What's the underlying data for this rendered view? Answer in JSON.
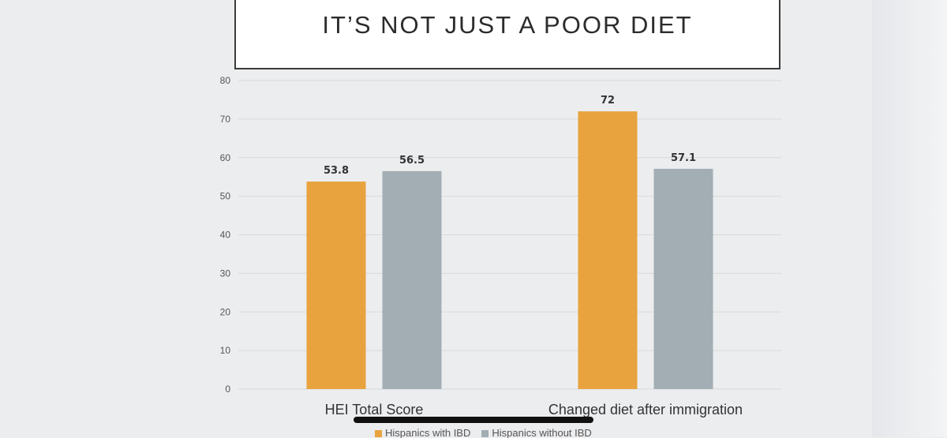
{
  "slide": {
    "title": "IT’S NOT JUST A POOR DIET"
  },
  "colors": {
    "with_ibd": "#e8a33f",
    "without_ibd": "#a2aeb4",
    "grid": "#d9d9d9"
  },
  "chart_data": {
    "type": "bar",
    "title": "",
    "xlabel": "",
    "ylabel": "",
    "categories": [
      "HEI Total Score",
      "Changed diet after immigration"
    ],
    "series": [
      {
        "name": "Hispanics with IBD",
        "values": [
          53.8,
          72
        ],
        "labels": [
          "53.8",
          "72"
        ]
      },
      {
        "name": "Hispanics without IBD",
        "values": [
          56.5,
          57.1
        ],
        "labels": [
          "56.5",
          "57.1"
        ]
      }
    ],
    "ylim": [
      0,
      80
    ],
    "yticks": [
      0,
      10,
      20,
      30,
      40,
      50,
      60,
      70,
      80
    ],
    "grid": true,
    "legend_position": "bottom"
  }
}
